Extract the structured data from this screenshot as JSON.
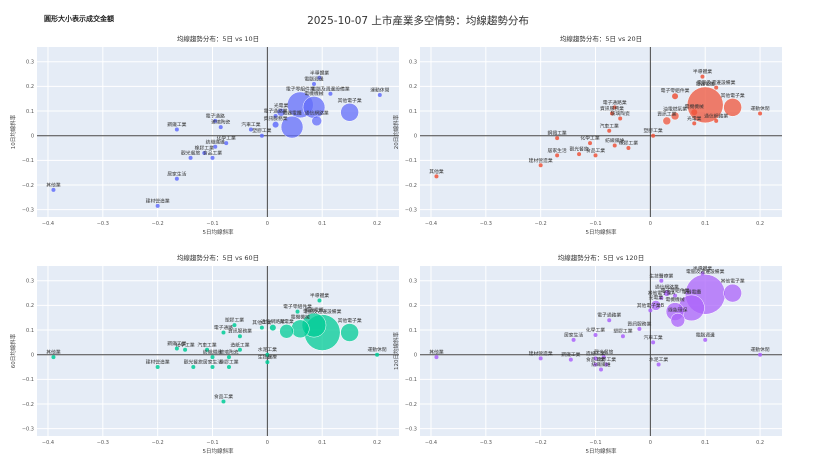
{
  "page": {
    "title": "2025-10-07 上市產業多空情勢：均線趨勢分布",
    "note": "圓形大小表示成交金額"
  },
  "chart_data": [
    {
      "type": "scatter",
      "title": "均線趨勢分布：5日 vs 10日",
      "xlabel": "5日均線斜率",
      "ylabel": "10日均線斜率",
      "xlim": [
        -0.42,
        0.24
      ],
      "ylim": [
        -0.33,
        0.36
      ],
      "xticks": [
        -0.4,
        -0.3,
        -0.2,
        -0.1,
        0,
        0.1,
        0.2
      ],
      "yticks": [
        -0.3,
        -0.2,
        -0.1,
        0,
        0.1,
        0.2,
        0.3
      ],
      "color": "#636efa",
      "points": [
        {
          "label": "半導體業",
          "x": 0.095,
          "y": 0.235,
          "r": 2
        },
        {
          "label": "電腦週邊",
          "x": 0.085,
          "y": 0.21,
          "r": 2
        },
        {
          "label": "電機機械",
          "x": 0.085,
          "y": 0.115,
          "r": 11
        },
        {
          "label": "電腦及週邊設備業",
          "x": 0.115,
          "y": 0.17,
          "r": 2
        },
        {
          "label": "運動休閒",
          "x": 0.205,
          "y": 0.165,
          "r": 2
        },
        {
          "label": "電子零組件業",
          "x": 0.06,
          "y": 0.125,
          "r": 13
        },
        {
          "label": "光電業",
          "x": 0.025,
          "y": 0.095,
          "r": 4
        },
        {
          "label": "通信網路業",
          "x": 0.09,
          "y": 0.06,
          "r": 5
        },
        {
          "label": "其他電子業",
          "x": 0.15,
          "y": 0.095,
          "r": 9
        },
        {
          "label": "電子通路業",
          "x": 0.015,
          "y": 0.08,
          "r": 2
        },
        {
          "label": "資訊服務業",
          "x": 0.015,
          "y": 0.045,
          "r": 3
        },
        {
          "label": "電器電纜",
          "x": 0.045,
          "y": 0.035,
          "r": 11
        },
        {
          "label": "鋼鐵工業",
          "x": -0.165,
          "y": 0.025,
          "r": 2
        },
        {
          "label": "電子通路",
          "x": -0.095,
          "y": 0.06,
          "r": 2
        },
        {
          "label": "玻璃陶瓷",
          "x": -0.085,
          "y": 0.035,
          "r": 2
        },
        {
          "label": "汽車工業",
          "x": -0.03,
          "y": 0.025,
          "r": 2
        },
        {
          "label": "塑膠工業",
          "x": -0.01,
          "y": 0.0,
          "r": 2
        },
        {
          "label": "化學工業",
          "x": -0.075,
          "y": -0.03,
          "r": 2
        },
        {
          "label": "紡織纖維",
          "x": -0.095,
          "y": -0.045,
          "r": 2
        },
        {
          "label": "橡膠工業",
          "x": -0.115,
          "y": -0.07,
          "r": 2
        },
        {
          "label": "觀光餐旅",
          "x": -0.14,
          "y": -0.09,
          "r": 2
        },
        {
          "label": "食品工業",
          "x": -0.1,
          "y": -0.09,
          "r": 2
        },
        {
          "label": "居家生活",
          "x": -0.165,
          "y": -0.175,
          "r": 2
        },
        {
          "label": "其他業",
          "x": -0.39,
          "y": -0.22,
          "r": 2
        },
        {
          "label": "建材營造業",
          "x": -0.2,
          "y": -0.285,
          "r": 2
        }
      ]
    },
    {
      "type": "scatter",
      "title": "均線趨勢分布：5日 vs 20日",
      "xlabel": "5日均線斜率",
      "ylabel": "20日均線斜率",
      "xlim": [
        -0.42,
        0.24
      ],
      "ylim": [
        -0.33,
        0.36
      ],
      "xticks": [
        -0.4,
        -0.3,
        -0.2,
        -0.1,
        0,
        0.1,
        0.2
      ],
      "yticks": [
        -0.3,
        -0.2,
        -0.1,
        0,
        0.1,
        0.2,
        0.3
      ],
      "color": "#ef553b",
      "points": [
        {
          "label": "半導體業",
          "x": 0.095,
          "y": 0.24,
          "r": 2
        },
        {
          "label": "電腦及週邊設備業",
          "x": 0.12,
          "y": 0.195,
          "r": 2
        },
        {
          "label": "電子零組件業",
          "x": 0.045,
          "y": 0.16,
          "r": 3
        },
        {
          "label": "電器電纜",
          "x": 0.1,
          "y": 0.125,
          "r": 18
        },
        {
          "label": "電機機械",
          "x": 0.08,
          "y": 0.095,
          "r": 3
        },
        {
          "label": "運動休閒",
          "x": 0.2,
          "y": 0.09,
          "r": 2
        },
        {
          "label": "其他電子業",
          "x": 0.15,
          "y": 0.115,
          "r": 9
        },
        {
          "label": "通信網路業",
          "x": 0.12,
          "y": 0.06,
          "r": 2
        },
        {
          "label": "光電業",
          "x": 0.08,
          "y": 0.05,
          "r": 2
        },
        {
          "label": "電子通路業",
          "x": -0.065,
          "y": 0.115,
          "r": 2
        },
        {
          "label": "資訊服務業",
          "x": -0.07,
          "y": 0.09,
          "r": 2
        },
        {
          "label": "汽車工業",
          "x": -0.075,
          "y": 0.02,
          "r": 2
        },
        {
          "label": "資訊工業",
          "x": 0.03,
          "y": 0.06,
          "r": 4
        },
        {
          "label": "油電燃氣業",
          "x": 0.045,
          "y": 0.08,
          "r": 4
        },
        {
          "label": "玻璃陶瓷",
          "x": -0.055,
          "y": 0.07,
          "r": 2
        },
        {
          "label": "鋼鐵工業",
          "x": -0.17,
          "y": -0.01,
          "r": 2
        },
        {
          "label": "化學工業",
          "x": -0.11,
          "y": -0.03,
          "r": 2
        },
        {
          "label": "紡織纖維",
          "x": -0.065,
          "y": -0.04,
          "r": 2
        },
        {
          "label": "塑膠工業",
          "x": 0.005,
          "y": 0.0,
          "r": 2
        },
        {
          "label": "橡膠工業",
          "x": -0.04,
          "y": -0.05,
          "r": 2
        },
        {
          "label": "居家生活",
          "x": -0.17,
          "y": -0.08,
          "r": 2
        },
        {
          "label": "觀光餐旅",
          "x": -0.13,
          "y": -0.075,
          "r": 2
        },
        {
          "label": "食品工業",
          "x": -0.1,
          "y": -0.08,
          "r": 2
        },
        {
          "label": "建材營造業",
          "x": -0.2,
          "y": -0.12,
          "r": 2
        },
        {
          "label": "其他業",
          "x": -0.39,
          "y": -0.165,
          "r": 2
        }
      ]
    },
    {
      "type": "scatter",
      "title": "均線趨勢分布：5日 vs 60日",
      "xlabel": "5日均線斜率",
      "ylabel": "60日均線斜率",
      "xlim": [
        -0.42,
        0.24
      ],
      "ylim": [
        -0.33,
        0.36
      ],
      "xticks": [
        -0.4,
        -0.3,
        -0.2,
        -0.1,
        0,
        0.1,
        0.2
      ],
      "yticks": [
        -0.3,
        -0.2,
        -0.1,
        0,
        0.1,
        0.2,
        0.3
      ],
      "color": "#00cc96",
      "points": [
        {
          "label": "半導體業",
          "x": 0.095,
          "y": 0.22,
          "r": 2
        },
        {
          "label": "電子零組件業",
          "x": 0.055,
          "y": 0.175,
          "r": 2
        },
        {
          "label": "電腦及週邊設備業",
          "x": 0.1,
          "y": 0.09,
          "r": 18
        },
        {
          "label": "其他電子業",
          "x": 0.15,
          "y": 0.09,
          "r": 9
        },
        {
          "label": "電器電纜",
          "x": 0.085,
          "y": 0.12,
          "r": 12
        },
        {
          "label": "電機機械",
          "x": 0.06,
          "y": 0.105,
          "r": 9
        },
        {
          "label": "光電業",
          "x": 0.035,
          "y": 0.095,
          "r": 7
        },
        {
          "label": "通信網路業",
          "x": 0.01,
          "y": 0.11,
          "r": 3
        },
        {
          "label": "其他工業",
          "x": -0.01,
          "y": 0.11,
          "r": 2
        },
        {
          "label": "資訊服務業",
          "x": -0.05,
          "y": 0.075,
          "r": 2
        },
        {
          "label": "塑膠工業",
          "x": -0.06,
          "y": 0.12,
          "r": 2
        },
        {
          "label": "運動休閒",
          "x": 0.2,
          "y": 0.0,
          "r": 2
        },
        {
          "label": "電子通路",
          "x": -0.08,
          "y": 0.09,
          "r": 2
        },
        {
          "label": "鋼鐵工業",
          "x": -0.165,
          "y": 0.025,
          "r": 2
        },
        {
          "label": "化學工業",
          "x": -0.15,
          "y": 0.02,
          "r": 2
        },
        {
          "label": "汽車工業",
          "x": -0.11,
          "y": 0.02,
          "r": 2
        },
        {
          "label": "造紙工業",
          "x": -0.05,
          "y": 0.02,
          "r": 2
        },
        {
          "label": "水泥工業",
          "x": 0.0,
          "y": 0.0,
          "r": 2
        },
        {
          "label": "紡織纖維",
          "x": -0.1,
          "y": -0.01,
          "r": 2
        },
        {
          "label": "玻璃陶瓷",
          "x": -0.07,
          "y": -0.01,
          "r": 2
        },
        {
          "label": "生技醫療",
          "x": 0.0,
          "y": -0.03,
          "r": 2
        },
        {
          "label": "其他業",
          "x": -0.39,
          "y": -0.01,
          "r": 2
        },
        {
          "label": "建材營造業",
          "x": -0.2,
          "y": -0.05,
          "r": 2
        },
        {
          "label": "觀光餐旅",
          "x": -0.135,
          "y": -0.05,
          "r": 2
        },
        {
          "label": "居家生活",
          "x": -0.1,
          "y": -0.05,
          "r": 2
        },
        {
          "label": "橡膠工業",
          "x": -0.07,
          "y": -0.05,
          "r": 2
        },
        {
          "label": "食品工業",
          "x": -0.08,
          "y": -0.19,
          "r": 2
        }
      ]
    },
    {
      "type": "scatter",
      "title": "均線趨勢分布：5日 vs 120日",
      "xlabel": "5日均線斜率",
      "ylabel": "120日均線斜率",
      "xlim": [
        -0.42,
        0.24
      ],
      "ylim": [
        -0.33,
        0.36
      ],
      "xticks": [
        -0.4,
        -0.3,
        -0.2,
        -0.1,
        0,
        0.1,
        0.2
      ],
      "yticks": [
        -0.3,
        -0.2,
        -0.1,
        0,
        0.1,
        0.2,
        0.3
      ],
      "color": "#ab63fa",
      "points": [
        {
          "label": "半導體業",
          "x": 0.095,
          "y": 0.33,
          "r": 2
        },
        {
          "label": "電腦及週邊設備業",
          "x": 0.1,
          "y": 0.245,
          "r": 20
        },
        {
          "label": "其他電子業",
          "x": 0.15,
          "y": 0.25,
          "r": 9
        },
        {
          "label": "電子零組件業",
          "x": 0.045,
          "y": 0.24,
          "r": 2
        },
        {
          "label": "生技醫療業",
          "x": 0.02,
          "y": 0.3,
          "r": 2
        },
        {
          "label": "通信網路業",
          "x": 0.03,
          "y": 0.25,
          "r": 3
        },
        {
          "label": "電器電纜",
          "x": 0.075,
          "y": 0.19,
          "r": 13
        },
        {
          "label": "電機機械",
          "x": 0.045,
          "y": 0.175,
          "r": 9
        },
        {
          "label": "光電業",
          "x": 0.01,
          "y": 0.2,
          "r": 5
        },
        {
          "label": "其他電子業A",
          "x": 0.02,
          "y": 0.23,
          "r": 2
        },
        {
          "label": "其他電子業B",
          "x": 0.0,
          "y": 0.18,
          "r": 2
        },
        {
          "label": "綠能環保",
          "x": 0.05,
          "y": 0.14,
          "r": 7
        },
        {
          "label": "電腦週邊",
          "x": 0.1,
          "y": 0.06,
          "r": 2
        },
        {
          "label": "電子通路業",
          "x": -0.075,
          "y": 0.14,
          "r": 2
        },
        {
          "label": "資訊服務業",
          "x": -0.02,
          "y": 0.105,
          "r": 2
        },
        {
          "label": "化學工業",
          "x": -0.1,
          "y": 0.08,
          "r": 2
        },
        {
          "label": "居家生活",
          "x": -0.14,
          "y": 0.06,
          "r": 2
        },
        {
          "label": "塑膠工業",
          "x": -0.05,
          "y": 0.075,
          "r": 2
        },
        {
          "label": "汽車工業",
          "x": 0.005,
          "y": 0.05,
          "r": 2
        },
        {
          "label": "運動休閒",
          "x": 0.2,
          "y": 0.0,
          "r": 2
        },
        {
          "label": "其他業",
          "x": -0.39,
          "y": -0.01,
          "r": 2
        },
        {
          "label": "建材營造業",
          "x": -0.2,
          "y": -0.015,
          "r": 2
        },
        {
          "label": "造紙工業",
          "x": -0.1,
          "y": -0.015,
          "r": 2
        },
        {
          "label": "觀光餐旅",
          "x": -0.085,
          "y": -0.01,
          "r": 2
        },
        {
          "label": "食品工業",
          "x": -0.1,
          "y": -0.04,
          "r": 2
        },
        {
          "label": "橡膠工業",
          "x": -0.08,
          "y": -0.04,
          "r": 2
        },
        {
          "label": "鋼鐵工業",
          "x": -0.145,
          "y": -0.02,
          "r": 2
        },
        {
          "label": "紡織纖維",
          "x": -0.09,
          "y": -0.06,
          "r": 2
        },
        {
          "label": "水泥工業",
          "x": 0.015,
          "y": -0.04,
          "r": 2
        }
      ]
    }
  ]
}
